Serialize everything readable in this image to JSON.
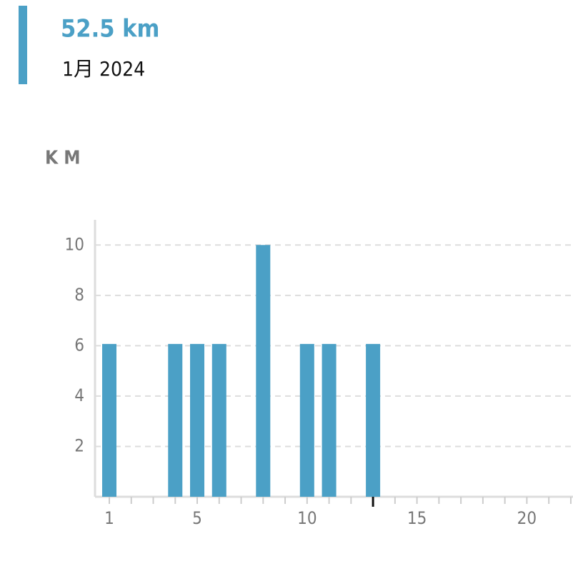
{
  "chart_data": {
    "type": "bar",
    "title": "52.5 km",
    "subtitle": "1月 2024",
    "y_label": "K M",
    "x": [
      1,
      4,
      5,
      6,
      8,
      10,
      11,
      13
    ],
    "values": [
      6.07,
      6.07,
      6.07,
      6.07,
      10,
      6.07,
      6.07,
      6.07
    ],
    "color": "#4ba0c6",
    "xlim": [
      0.35,
      22.1
    ],
    "xticks": [
      1,
      5,
      10,
      15,
      20
    ],
    "xminorticks": [
      1,
      2,
      3,
      4,
      5,
      6,
      7,
      8,
      9,
      10,
      11,
      12,
      13,
      14,
      15,
      16,
      17,
      18,
      19,
      20,
      21,
      22
    ],
    "selected_x": 13,
    "ylim": [
      0,
      11
    ],
    "yticks": [
      2,
      4,
      6,
      8,
      10
    ],
    "grid": true
  }
}
